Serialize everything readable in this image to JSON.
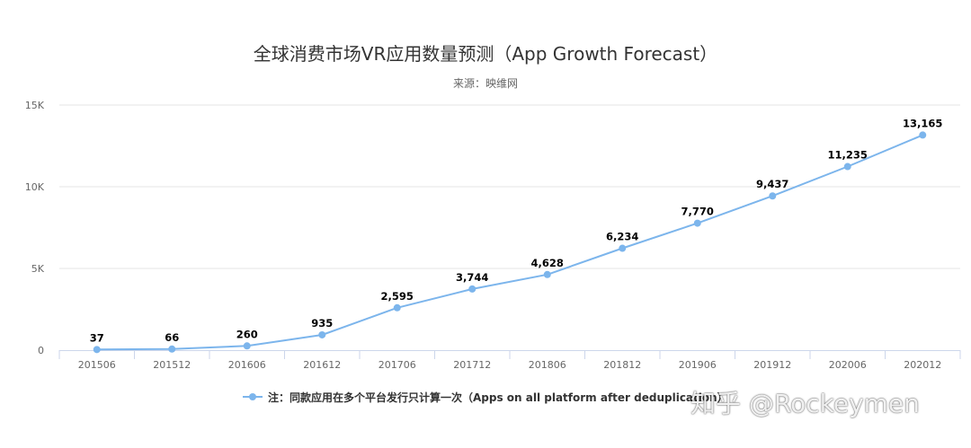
{
  "chart_data": {
    "type": "line",
    "title": "全球消费市场VR应用数量预测（App Growth Forecast）",
    "subtitle": "来源：映维网",
    "categories": [
      "201506",
      "201512",
      "201606",
      "201612",
      "201706",
      "201712",
      "201806",
      "201812",
      "201906",
      "201912",
      "202006",
      "202012"
    ],
    "series": [
      {
        "name": "注：同款应用在多个平台发行只计算一次（Apps on all platform after deduplication）",
        "values": [
          37,
          66,
          260,
          935,
          2595,
          3744,
          4628,
          6234,
          7770,
          9437,
          11235,
          13165
        ],
        "labels": [
          "37",
          "66",
          "260",
          "935",
          "2,595",
          "3,744",
          "4,628",
          "6,234",
          "7,770",
          "9,437",
          "11,235",
          "13,165"
        ]
      }
    ],
    "yticks": [
      "0",
      "5K",
      "10K",
      "15K"
    ],
    "ylim": [
      0,
      15000
    ],
    "grid": true,
    "legend_position": "bottom",
    "color": "#7cb5ec"
  },
  "watermark": "知乎 @Rockeymen"
}
